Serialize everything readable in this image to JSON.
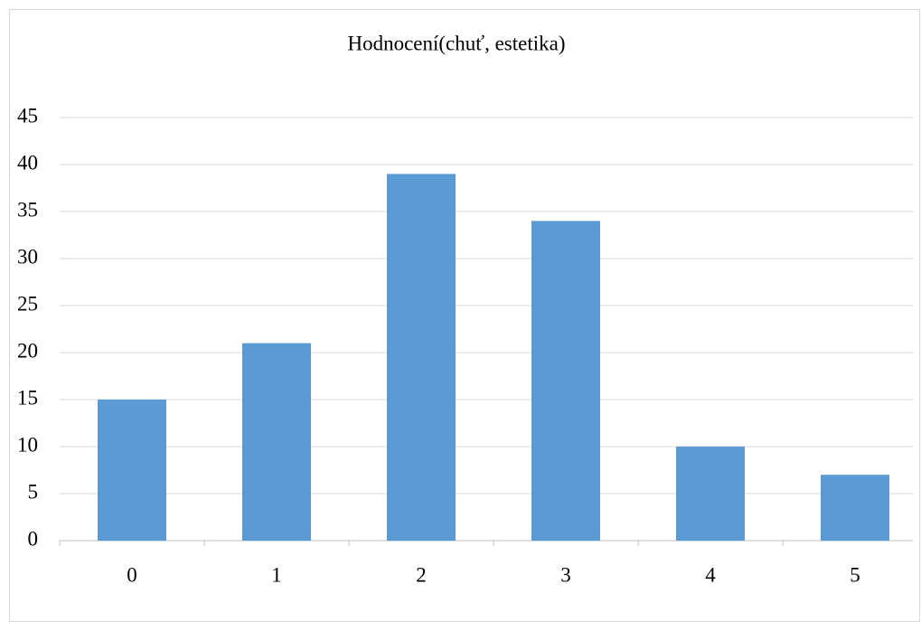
{
  "chart_data": {
    "type": "bar",
    "title": "Hodnocení(chuť, estetika)",
    "categories": [
      "0",
      "1",
      "2",
      "3",
      "4",
      "5"
    ],
    "values": [
      15,
      21,
      39,
      34,
      10,
      7
    ],
    "color": "#5b9bd5",
    "ylim": [
      0,
      45
    ],
    "yticks": [
      0,
      5,
      10,
      15,
      20,
      25,
      30,
      35,
      40,
      45
    ],
    "grid": true
  }
}
